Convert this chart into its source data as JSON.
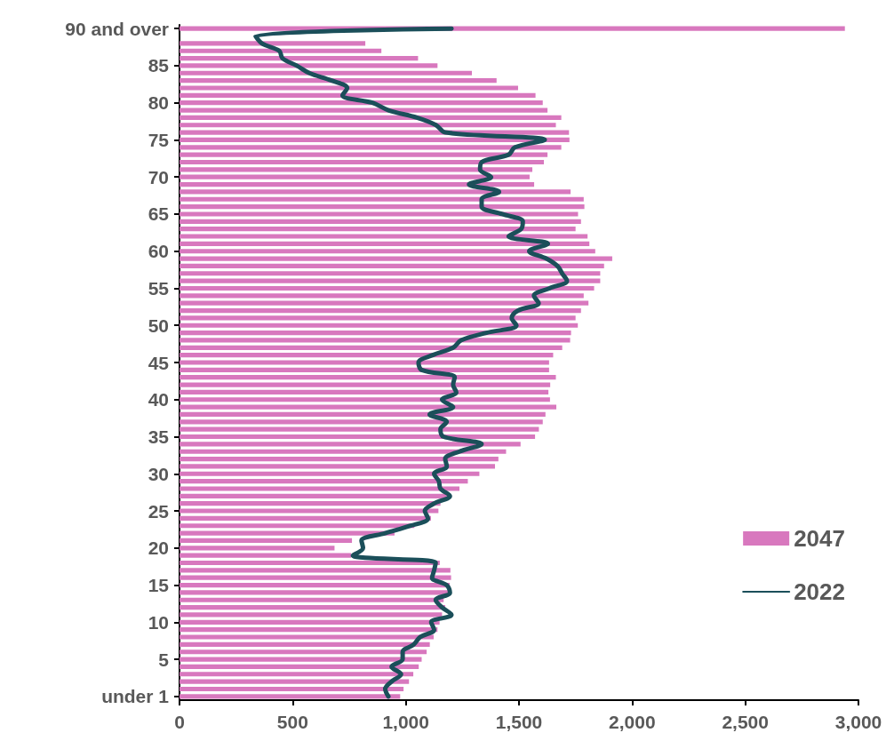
{
  "chart_data": {
    "type": "bar",
    "orientation": "horizontal",
    "categories": [
      "90 and over",
      null,
      null,
      null,
      null,
      "85",
      null,
      null,
      null,
      null,
      "80",
      null,
      null,
      null,
      null,
      "75",
      null,
      null,
      null,
      null,
      "70",
      null,
      null,
      null,
      null,
      "65",
      null,
      null,
      null,
      null,
      "60",
      null,
      null,
      null,
      null,
      "55",
      null,
      null,
      null,
      null,
      "50",
      null,
      null,
      null,
      null,
      "45",
      null,
      null,
      null,
      null,
      "40",
      null,
      null,
      null,
      null,
      "35",
      null,
      null,
      null,
      null,
      "30",
      null,
      null,
      null,
      null,
      "25",
      null,
      null,
      null,
      null,
      "20",
      null,
      null,
      null,
      null,
      "15",
      null,
      null,
      null,
      null,
      "10",
      null,
      null,
      null,
      null,
      "5",
      null,
      null,
      null,
      null,
      "under 1"
    ],
    "series": [
      {
        "name": "2047",
        "color": "#d878be",
        "values": [
          2940,
          null,
          821,
          892,
          1054,
          1140,
          1292,
          1401,
          1496,
          1573,
          1605,
          1626,
          1687,
          1663,
          1721,
          1723,
          1687,
          1626,
          1610,
          1559,
          1547,
          1567,
          1728,
          1786,
          1789,
          1761,
          1774,
          1750,
          1803,
          1811,
          1837,
          1912,
          1876,
          1859,
          1859,
          1832,
          1786,
          1807,
          1774,
          1750,
          1760,
          1730,
          1726,
          1691,
          1651,
          1633,
          1633,
          1663,
          1638,
          1630,
          1637,
          1665,
          1617,
          1605,
          1588,
          1571,
          1507,
          1443,
          1409,
          1394,
          1325,
          1274,
          1237,
          1190,
          1153,
          1144,
          1111,
          1038,
          950,
          762,
          685,
          758,
          1150,
          1197,
          1200,
          1194,
          1188,
          1167,
          1174,
          1160,
          1149,
          1140,
          1123,
          1106,
          1092,
          1070,
          1057,
          1033,
          1014,
          990,
          975
        ]
      },
      {
        "name": "2022",
        "type": "line",
        "color": "#1b4f5a",
        "values": [
          1202,
          336,
          364,
          441,
          455,
          518,
          574,
          672,
          741,
          720,
          853,
          923,
          1049,
          1133,
          1174,
          1614,
          1482,
          1454,
          1335,
          1328,
          1377,
          1279,
          1412,
          1335,
          1335,
          1426,
          1517,
          1510,
          1454,
          1628,
          1545,
          1621,
          1670,
          1691,
          1712,
          1635,
          1566,
          1587,
          1496,
          1468,
          1489,
          1356,
          1244,
          1209,
          1119,
          1056,
          1070,
          1216,
          1209,
          1223,
          1160,
          1209,
          1105,
          1181,
          1153,
          1167,
          1335,
          1237,
          1174,
          1181,
          1125,
          1146,
          1153,
          1195,
          1125,
          1084,
          1098,
          1021,
          909,
          804,
          811,
          766,
          1132,
          1125,
          1116,
          1181,
          1195,
          1132,
          1160,
          1202,
          1112,
          1125,
          1063,
          1035,
          986,
          986,
          937,
          979,
          937,
          909,
          923
        ]
      }
    ],
    "xlim": [
      0,
      3000
    ],
    "xticks": [
      0,
      500,
      {
        "value": 1000,
        "label": "1,000"
      },
      {
        "value": 1500,
        "label": "1,500"
      },
      {
        "value": 2000,
        "label": "2,000"
      },
      {
        "value": 2500,
        "label": "2,500"
      },
      {
        "value": 3000,
        "label": "3,000"
      }
    ],
    "legend": "bottom right",
    "grid": false,
    "marker": "none",
    "line_style": "solid"
  }
}
